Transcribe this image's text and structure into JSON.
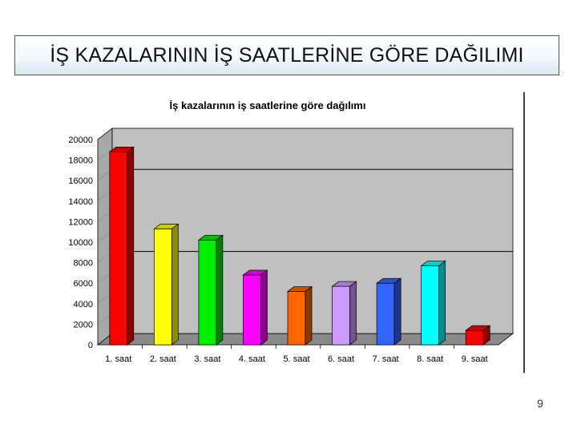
{
  "slide": {
    "heading": "İŞ KAZALARININ İŞ SAATLERİNE GÖRE DAĞILIMI",
    "page_number": "9"
  },
  "chart_data": {
    "type": "bar",
    "title": "İş kazalarının iş saatlerine göre dağılımı",
    "categories": [
      "1. saat",
      "2. saat",
      "3. saat",
      "4. saat",
      "5. saat",
      "6. saat",
      "7. saat",
      "8. saat",
      "9. saat"
    ],
    "values": [
      18800,
      11300,
      10200,
      6800,
      5200,
      5700,
      6000,
      7700,
      1400
    ],
    "colors": [
      "#ff0000",
      "#ffff00",
      "#00ee00",
      "#ff00ff",
      "#ff6600",
      "#cc99ff",
      "#3366ff",
      "#00ffff",
      "#ff0000"
    ],
    "yticks": [
      "0",
      "2000",
      "4000",
      "6000",
      "8000",
      "10000",
      "12000",
      "14000",
      "16000",
      "18000",
      "20000"
    ],
    "ylim": [
      0,
      20000
    ],
    "xlabel": "",
    "ylabel": "",
    "legend": false,
    "grid": true,
    "wall_color": "#c0c0c0"
  }
}
